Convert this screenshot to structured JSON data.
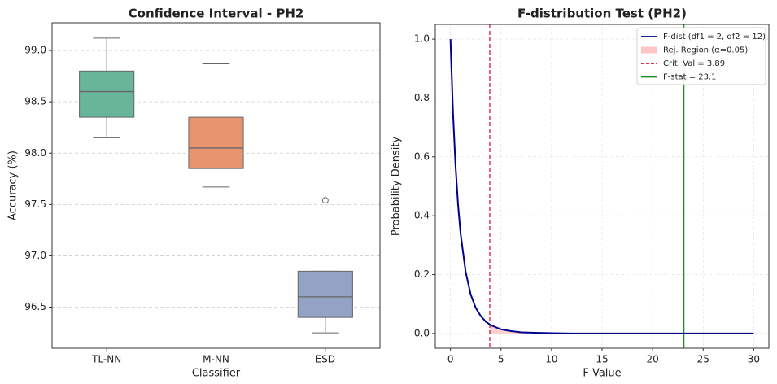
{
  "chart_data": [
    {
      "type": "box",
      "title": "Confidence Interval - PH2",
      "xlabel": "Classifier",
      "ylabel": "Accuracy (%)",
      "categories": [
        "TL-NN",
        "M-NN",
        "ESD"
      ],
      "colors": [
        "#69b59a",
        "#e8956f",
        "#93a3c6"
      ],
      "boxes": [
        {
          "low": 98.15,
          "q1": 98.35,
          "median": 98.6,
          "q3": 98.8,
          "high": 99.12,
          "outliers": []
        },
        {
          "low": 97.67,
          "q1": 97.85,
          "median": 98.05,
          "q3": 98.35,
          "high": 98.87,
          "outliers": []
        },
        {
          "low": 96.25,
          "q1": 96.4,
          "median": 96.6,
          "q3": 96.85,
          "high": 96.85,
          "outliers": [
            97.54
          ]
        }
      ],
      "ylim": [
        96.1,
        99.27
      ],
      "yticks": [
        {
          "value": 96.5,
          "label": "96.5"
        },
        {
          "value": 97,
          "label": "97.0"
        },
        {
          "value": 97.5,
          "label": "97.5"
        },
        {
          "value": 98,
          "label": "98.0"
        },
        {
          "value": 98.5,
          "label": "98.5"
        },
        {
          "value": 99,
          "label": "99.0"
        }
      ],
      "grid": "y"
    },
    {
      "type": "line",
      "title": "F-distribution Test (PH2)",
      "xlabel": "F Value",
      "ylabel": "Probability Density",
      "series": [
        {
          "name": "F-dist (df1 = 2, df2 = 12)",
          "color": "#00008b",
          "x": [
            0,
            0.25,
            0.5,
            0.75,
            1,
            1.5,
            2,
            2.5,
            3,
            3.5,
            4,
            5,
            6,
            7,
            8,
            10,
            12,
            15,
            20,
            25,
            30
          ],
          "values": [
            1,
            0.751,
            0.571,
            0.438,
            0.34,
            0.21,
            0.133,
            0.087,
            0.059,
            0.04,
            0.028,
            0.014,
            0.008,
            0.004,
            0.003,
            0.001,
            0,
            0,
            0,
            0,
            0
          ]
        }
      ],
      "rejection_region": {
        "name": "Rej. Region (α=0.05)",
        "color": "#ffc4c4"
      },
      "critical_value": {
        "name": "Crit. Val = 3.89",
        "value": 3.89,
        "color": "#dc143c"
      },
      "f_stat": {
        "name": "F-stat = 23.1",
        "value": 23.1,
        "color": "#228b22"
      },
      "xlim": [
        -1.5,
        31.5
      ],
      "xticks": [
        0,
        5,
        10,
        15,
        20,
        25,
        30
      ],
      "ylim": [
        -0.05,
        1.05
      ],
      "yticks": [
        {
          "value": 0,
          "label": "0.0"
        },
        {
          "value": 0.2,
          "label": "0.2"
        },
        {
          "value": 0.4,
          "label": "0.4"
        },
        {
          "value": 0.6,
          "label": "0.6"
        },
        {
          "value": 0.8,
          "label": "0.8"
        },
        {
          "value": 1,
          "label": "1.0"
        }
      ],
      "grid": "both"
    }
  ]
}
